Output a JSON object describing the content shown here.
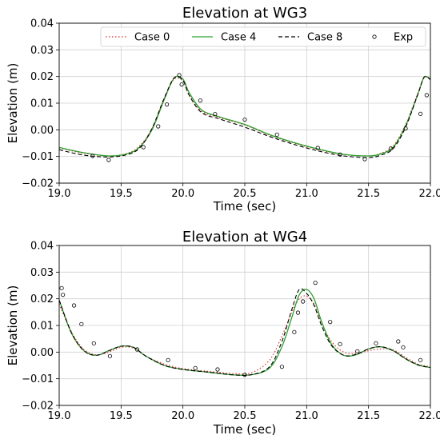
{
  "chart_data": [
    {
      "type": "line",
      "title": "Elevation at WG3",
      "xlabel": "Time (sec)",
      "ylabel": "Elevation (m)",
      "xlim": [
        19.0,
        22.0
      ],
      "ylim": [
        -0.02,
        0.04
      ],
      "xticks": [
        "19.0",
        "19.5",
        "20.0",
        "20.5",
        "21.0",
        "21.5",
        "22.0"
      ],
      "yticks": [
        "−0.02",
        "−0.01",
        "0.00",
        "0.01",
        "0.02",
        "0.03",
        "0.04"
      ],
      "grid": true,
      "legend": "top-right",
      "series": [
        {
          "name": "Case 0",
          "style": "dotted",
          "color": "#d62728",
          "x": [
            19.0,
            19.2,
            19.4,
            19.55,
            19.65,
            19.75,
            19.85,
            19.93,
            20.0,
            20.05,
            20.15,
            20.3,
            20.5,
            20.7,
            20.9,
            21.1,
            21.3,
            21.5,
            21.6,
            21.7,
            21.8,
            21.9,
            21.95,
            22.0
          ],
          "y": [
            -0.0068,
            -0.0088,
            -0.0098,
            -0.0088,
            -0.006,
            0.0005,
            0.012,
            0.019,
            0.0182,
            0.013,
            0.007,
            0.0045,
            0.0018,
            -0.002,
            -0.005,
            -0.0075,
            -0.0093,
            -0.0098,
            -0.0088,
            -0.006,
            0.002,
            0.014,
            0.0195,
            0.019
          ]
        },
        {
          "name": "Case 4",
          "style": "solid",
          "color": "#2ca02c",
          "x": [
            19.0,
            19.2,
            19.4,
            19.55,
            19.65,
            19.75,
            19.85,
            19.93,
            20.0,
            20.05,
            20.15,
            20.3,
            20.5,
            20.7,
            20.9,
            21.1,
            21.3,
            21.5,
            21.6,
            21.7,
            21.8,
            21.9,
            21.95,
            22.0
          ],
          "y": [
            -0.0066,
            -0.0086,
            -0.0098,
            -0.009,
            -0.0065,
            0.0,
            0.0115,
            0.0195,
            0.019,
            0.014,
            0.0075,
            0.0048,
            0.002,
            -0.0018,
            -0.0048,
            -0.0073,
            -0.0092,
            -0.0098,
            -0.009,
            -0.0065,
            0.0015,
            0.0135,
            0.0198,
            0.019
          ]
        },
        {
          "name": "Case 8",
          "style": "dashed",
          "color": "#000000",
          "x": [
            19.0,
            19.2,
            19.4,
            19.55,
            19.65,
            19.75,
            19.85,
            19.93,
            20.0,
            20.05,
            20.15,
            20.3,
            20.5,
            20.7,
            20.9,
            21.1,
            21.3,
            21.5,
            21.6,
            21.7,
            21.8,
            21.9,
            21.95,
            22.0
          ],
          "y": [
            -0.0075,
            -0.0095,
            -0.0102,
            -0.0093,
            -0.0068,
            0.0005,
            0.012,
            0.0195,
            0.0185,
            0.013,
            0.0065,
            0.004,
            0.001,
            -0.0025,
            -0.0055,
            -0.008,
            -0.0098,
            -0.0104,
            -0.0095,
            -0.007,
            0.001,
            0.0135,
            0.0198,
            0.0188
          ]
        },
        {
          "name": "Exp",
          "style": "markers",
          "color": "#000000",
          "x": [
            19.27,
            19.4,
            19.68,
            19.8,
            19.87,
            19.97,
            19.99,
            20.14,
            20.26,
            20.5,
            20.76,
            21.09,
            21.27,
            21.47,
            21.68,
            21.8,
            21.92,
            21.97
          ],
          "y": [
            -0.0098,
            -0.0113,
            -0.0065,
            0.0013,
            0.0095,
            0.0205,
            0.017,
            0.011,
            0.0059,
            0.0038,
            -0.0018,
            -0.0068,
            -0.0093,
            -0.011,
            -0.007,
            0.0005,
            0.006,
            0.013
          ]
        }
      ]
    },
    {
      "type": "line",
      "title": "Elevation at WG4",
      "xlabel": "Time (sec)",
      "ylabel": "Elevation (m)",
      "xlim": [
        19.0,
        22.0
      ],
      "ylim": [
        -0.02,
        0.04
      ],
      "xticks": [
        "19.0",
        "19.5",
        "20.0",
        "20.5",
        "21.0",
        "21.5",
        "22.0"
      ],
      "yticks": [
        "−0.02",
        "−0.01",
        "0.00",
        "0.01",
        "0.02",
        "0.03",
        "0.04"
      ],
      "grid": true,
      "series": [
        {
          "name": "Case 0",
          "style": "dotted",
          "color": "#d62728",
          "x": [
            19.0,
            19.1,
            19.2,
            19.3,
            19.4,
            19.5,
            19.6,
            19.7,
            19.85,
            20.0,
            20.2,
            20.4,
            20.55,
            20.7,
            20.8,
            20.88,
            20.94,
            21.0,
            21.06,
            21.12,
            21.2,
            21.3,
            21.4,
            21.5,
            21.6,
            21.7,
            21.8,
            21.9,
            22.0
          ],
          "y": [
            0.018,
            0.0075,
            0.001,
            -0.001,
            0.0,
            0.0018,
            0.0015,
            -0.0015,
            -0.0045,
            -0.0062,
            -0.0072,
            -0.008,
            -0.0078,
            -0.003,
            0.006,
            0.015,
            0.02,
            0.021,
            0.018,
            0.011,
            0.004,
            0.0,
            -0.0005,
            0.0005,
            0.0012,
            0.0008,
            -0.002,
            -0.0045,
            -0.0055
          ]
        },
        {
          "name": "Case 4",
          "style": "solid",
          "color": "#2ca02c",
          "x": [
            19.0,
            19.1,
            19.2,
            19.3,
            19.4,
            19.5,
            19.6,
            19.7,
            19.85,
            20.0,
            20.2,
            20.4,
            20.55,
            20.7,
            20.8,
            20.88,
            20.94,
            21.0,
            21.06,
            21.12,
            21.2,
            21.3,
            21.4,
            21.5,
            21.6,
            21.7,
            21.8,
            21.9,
            22.0
          ],
          "y": [
            0.0195,
            0.007,
            0.0005,
            -0.0012,
            0.0005,
            0.0022,
            0.0018,
            -0.0015,
            -0.005,
            -0.0065,
            -0.0075,
            -0.0085,
            -0.0085,
            -0.006,
            0.002,
            0.013,
            0.0215,
            0.0235,
            0.02,
            0.0115,
            0.003,
            -0.0012,
            -0.001,
            0.0012,
            0.002,
            0.0005,
            -0.0025,
            -0.0048,
            -0.0058
          ]
        },
        {
          "name": "Case 8",
          "style": "dashed",
          "color": "#000000",
          "x": [
            19.0,
            19.1,
            19.2,
            19.3,
            19.4,
            19.5,
            19.6,
            19.7,
            19.85,
            20.0,
            20.2,
            20.4,
            20.55,
            20.7,
            20.8,
            20.88,
            20.94,
            21.0,
            21.06,
            21.12,
            21.2,
            21.3,
            21.4,
            21.5,
            21.6,
            21.7,
            21.8,
            21.9,
            22.0
          ],
          "y": [
            0.0195,
            0.0072,
            0.0005,
            -0.0012,
            0.0005,
            0.0022,
            0.0018,
            -0.0015,
            -0.005,
            -0.0065,
            -0.0075,
            -0.0085,
            -0.0085,
            -0.0055,
            0.004,
            0.016,
            0.0235,
            0.022,
            0.0175,
            0.01,
            0.0025,
            -0.0012,
            -0.0008,
            0.0012,
            0.002,
            0.0005,
            -0.0025,
            -0.0048,
            -0.0058
          ]
        },
        {
          "name": "Exp",
          "style": "markers",
          "color": "#000000",
          "x": [
            19.02,
            19.03,
            19.12,
            19.18,
            19.28,
            19.41,
            19.63,
            19.88,
            20.1,
            20.28,
            20.5,
            20.8,
            20.9,
            20.93,
            20.97,
            21.07,
            21.19,
            21.27,
            21.41,
            21.56,
            21.74,
            21.78,
            21.92
          ],
          "y": [
            0.024,
            0.0215,
            0.0175,
            0.0105,
            0.0033,
            -0.0015,
            0.001,
            -0.003,
            -0.006,
            -0.0065,
            -0.0085,
            -0.0055,
            0.0075,
            0.0148,
            0.019,
            0.026,
            0.0113,
            0.003,
            0.0003,
            0.0033,
            0.004,
            0.0018,
            -0.003
          ]
        }
      ]
    }
  ]
}
